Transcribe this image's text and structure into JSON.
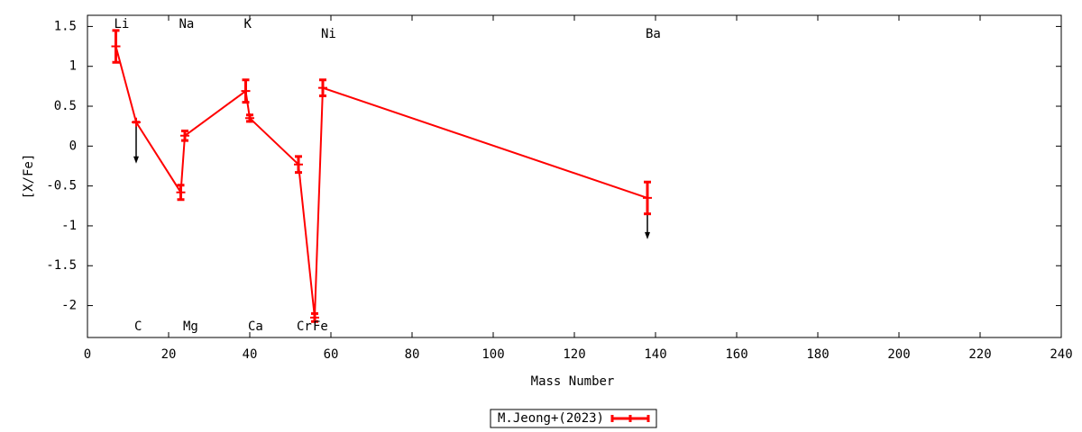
{
  "chart_data": {
    "type": "line",
    "xlabel": "Mass Number",
    "ylabel": "[X/Fe]",
    "x": [
      7,
      12,
      23,
      24,
      39,
      40,
      52,
      56,
      58,
      138
    ],
    "labels": [
      "Li",
      "C",
      "Na",
      "Mg",
      "K",
      "Ca",
      "Cr",
      "Fe",
      "Ni",
      "Ba"
    ],
    "upper_limits": [
      false,
      true,
      false,
      false,
      false,
      false,
      false,
      false,
      false,
      true
    ],
    "series": [
      {
        "name": "M.Jeong+(2023)",
        "color": "#ff0000",
        "values": [
          1.25,
          0.3,
          -0.58,
          0.13,
          0.69,
          0.35,
          -0.23,
          -2.15,
          0.73,
          -0.65
        ],
        "errors": [
          0.2,
          0.0,
          0.09,
          0.06,
          0.14,
          0.04,
          0.1,
          0.05,
          0.1,
          0.2
        ]
      }
    ],
    "xlim": [
      0,
      240
    ],
    "xticks": [
      0,
      20,
      40,
      60,
      80,
      100,
      120,
      140,
      160,
      180,
      200,
      220,
      240
    ],
    "ylim": [
      -2.4,
      1.64
    ],
    "yticks": [
      -2,
      -1.5,
      -1,
      -0.5,
      0,
      0.5,
      1,
      1.5
    ],
    "legend": "bottom"
  }
}
